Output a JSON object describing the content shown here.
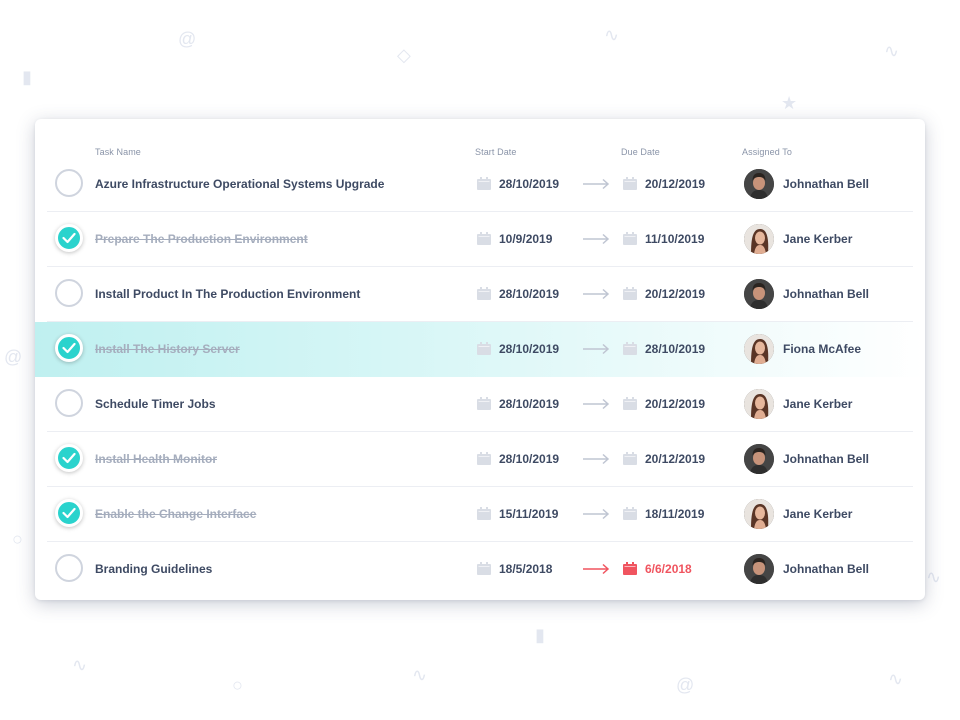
{
  "headers": {
    "task": "Task Name",
    "start": "Start Date",
    "due": "Due Date",
    "assigned": "Assigned To"
  },
  "tasks": [
    {
      "name": "Azure Infrastructure Operational Systems Upgrade",
      "done": false,
      "start": "28/10/2019",
      "due": "20/12/2019",
      "overdue": false,
      "assignee": "Johnathan Bell",
      "avatar": "male-avatar"
    },
    {
      "name": "Prepare The Production Environment",
      "done": true,
      "start": "10/9/2019",
      "due": "11/10/2019",
      "overdue": false,
      "assignee": "Jane Kerber",
      "avatar": "female-avatar"
    },
    {
      "name": "Install Product In The Production Environment",
      "done": false,
      "start": "28/10/2019",
      "due": "20/12/2019",
      "overdue": false,
      "assignee": "Johnathan Bell",
      "avatar": "male-avatar"
    },
    {
      "name": "Install The History Server",
      "done": true,
      "start": "28/10/2019",
      "due": "28/10/2019",
      "overdue": false,
      "assignee": "Fiona McAfee",
      "avatar": "female-avatar",
      "highlighted": true
    },
    {
      "name": "Schedule Timer Jobs",
      "done": false,
      "start": "28/10/2019",
      "due": "20/12/2019",
      "overdue": false,
      "assignee": "Jane Kerber",
      "avatar": "female-avatar"
    },
    {
      "name": "Install Health Monitor",
      "done": true,
      "start": "28/10/2019",
      "due": "20/12/2019",
      "overdue": false,
      "assignee": "Johnathan Bell",
      "avatar": "male-avatar"
    },
    {
      "name": "Enable the Change Interface",
      "done": true,
      "start": "15/11/2019",
      "due": "18/11/2019",
      "overdue": false,
      "assignee": "Jane Kerber",
      "avatar": "female-avatar"
    },
    {
      "name": "Branding Guidelines",
      "done": false,
      "start": "18/5/2018",
      "due": "6/6/2018",
      "overdue": true,
      "assignee": "Johnathan Bell",
      "avatar": "male-avatar"
    }
  ],
  "colors": {
    "accent": "#2ad3cd",
    "overdue": "#f0545f",
    "text": "#3e4a63",
    "muted": "#a5adbd"
  }
}
